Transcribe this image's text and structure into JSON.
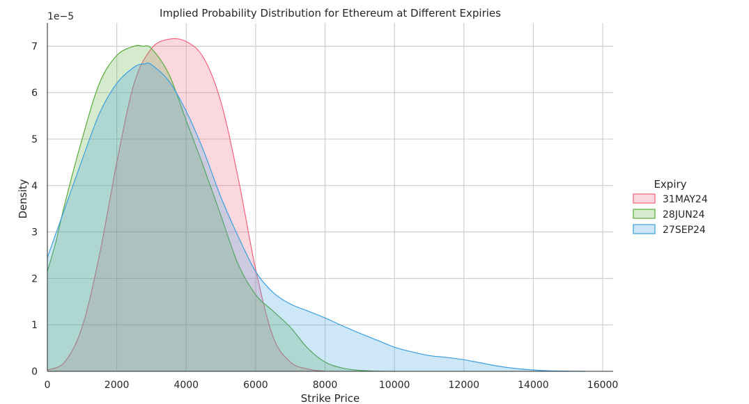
{
  "chart_data": {
    "type": "area",
    "title": "Implied Probability Distribution for Ethereum at Different Expiries",
    "xlabel": "Strike Price",
    "ylabel": "Density",
    "y_offset_text": "1e−5",
    "xlim": [
      0,
      16300
    ],
    "ylim": [
      0,
      7.5
    ],
    "x_ticks": [
      0,
      2000,
      4000,
      6000,
      8000,
      10000,
      12000,
      14000,
      16000
    ],
    "x_tick_labels": [
      "0",
      "2000",
      "4000",
      "6000",
      "8000",
      "10000",
      "12000",
      "14000",
      "16000"
    ],
    "y_ticks": [
      0,
      1,
      2,
      3,
      4,
      5,
      6,
      7
    ],
    "y_tick_labels": [
      "0",
      "1",
      "2",
      "3",
      "4",
      "5",
      "6",
      "7"
    ],
    "grid": true,
    "legend": {
      "title": "Expiry",
      "placement": "right"
    },
    "series": [
      {
        "name": "31MAY24",
        "color": "#f0647d",
        "x": [
          0,
          500,
          1000,
          1500,
          2000,
          2500,
          3000,
          3500,
          4000,
          4500,
          5000,
          5500,
          6000,
          6500,
          7000,
          7500,
          8000
        ],
        "y": [
          0.03,
          0.2,
          0.95,
          2.5,
          4.5,
          6.2,
          6.95,
          7.15,
          7.1,
          6.75,
          5.8,
          4.15,
          2.2,
          0.75,
          0.2,
          0.05,
          0.0
        ]
      },
      {
        "name": "28JUN24",
        "color": "#5aaa3c",
        "x": [
          0,
          250,
          500,
          1000,
          1500,
          2000,
          2500,
          2750,
          3000,
          3500,
          4000,
          4500,
          5000,
          5500,
          6000,
          6500,
          7000,
          7500,
          8000,
          8500,
          9000,
          9500,
          10000
        ],
        "y": [
          2.15,
          2.8,
          3.6,
          5.0,
          6.2,
          6.8,
          7.0,
          7.0,
          6.95,
          6.4,
          5.4,
          4.4,
          3.35,
          2.3,
          1.65,
          1.3,
          0.95,
          0.5,
          0.2,
          0.07,
          0.02,
          0.005,
          0.0
        ]
      },
      {
        "name": "27SEP24",
        "color": "#3c9fde",
        "x": [
          0,
          500,
          1000,
          1500,
          2000,
          2500,
          2800,
          3000,
          3500,
          4000,
          4500,
          5000,
          5500,
          6000,
          6500,
          7000,
          7500,
          8000,
          8500,
          9000,
          9500,
          10000,
          10500,
          11000,
          11500,
          12000,
          12500,
          13000,
          13500,
          14000,
          14500,
          15000,
          15500
        ],
        "y": [
          2.45,
          3.5,
          4.55,
          5.55,
          6.2,
          6.55,
          6.62,
          6.6,
          6.25,
          5.6,
          4.75,
          3.75,
          2.9,
          2.15,
          1.7,
          1.45,
          1.3,
          1.15,
          0.98,
          0.82,
          0.67,
          0.52,
          0.42,
          0.34,
          0.3,
          0.25,
          0.18,
          0.11,
          0.06,
          0.03,
          0.01,
          0.004,
          0.0
        ]
      }
    ]
  }
}
